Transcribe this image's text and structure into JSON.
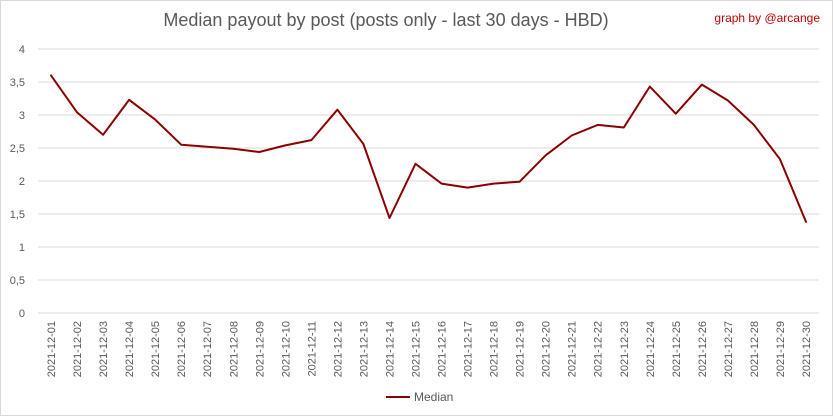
{
  "header": {
    "title": "Median payout by post (posts only - last 30 days - HBD)",
    "credit": "graph by @arcange"
  },
  "colors": {
    "series": "#8b0000",
    "grid": "#d9d9d9",
    "text": "#595959",
    "credit": "#c00000"
  },
  "chart_data": {
    "type": "line",
    "title": "Median payout by post (posts only - last 30 days - HBD)",
    "ylim": [
      0,
      4
    ],
    "yticks": [
      "0",
      "0,5",
      "1",
      "1,5",
      "2",
      "2,5",
      "3",
      "3,5",
      "4"
    ],
    "grid": true,
    "legend_position": "bottom",
    "categories": [
      "2021-12-01",
      "2021-12-02",
      "2021-12-03",
      "2021-12-04",
      "2021-12-05",
      "2021-12-06",
      "2021-12-07",
      "2021-12-08",
      "2021-12-09",
      "2021-12-10",
      "2021-12-11",
      "2021-12-12",
      "2021-12-13",
      "2021-12-14",
      "2021-12-15",
      "2021-12-16",
      "2021-12-17",
      "2021-12-18",
      "2021-12-19",
      "2021-12-20",
      "2021-12-21",
      "2021-12-22",
      "2021-12-23",
      "2021-12-24",
      "2021-12-25",
      "2021-12-26",
      "2021-12-27",
      "2021-12-28",
      "2021-12-29",
      "2021-12-30"
    ],
    "series": [
      {
        "name": "Median",
        "values": [
          3.6,
          3.04,
          2.7,
          3.23,
          2.93,
          2.55,
          2.52,
          2.49,
          2.44,
          2.54,
          2.62,
          3.08,
          2.56,
          1.44,
          2.26,
          1.96,
          1.9,
          1.96,
          1.99,
          2.39,
          2.69,
          2.85,
          2.81,
          3.43,
          3.02,
          3.46,
          3.22,
          2.85,
          2.33,
          1.38
        ]
      }
    ]
  }
}
